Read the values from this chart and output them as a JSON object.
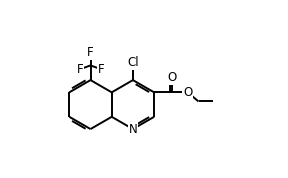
{
  "background": "#ffffff",
  "line_color": "#000000",
  "lw": 1.4,
  "fs": 8.5,
  "fig_width": 2.88,
  "fig_height": 1.78,
  "dpi": 100,
  "xlim": [
    -2.6,
    4.8
  ],
  "ylim": [
    -2.2,
    3.4
  ]
}
